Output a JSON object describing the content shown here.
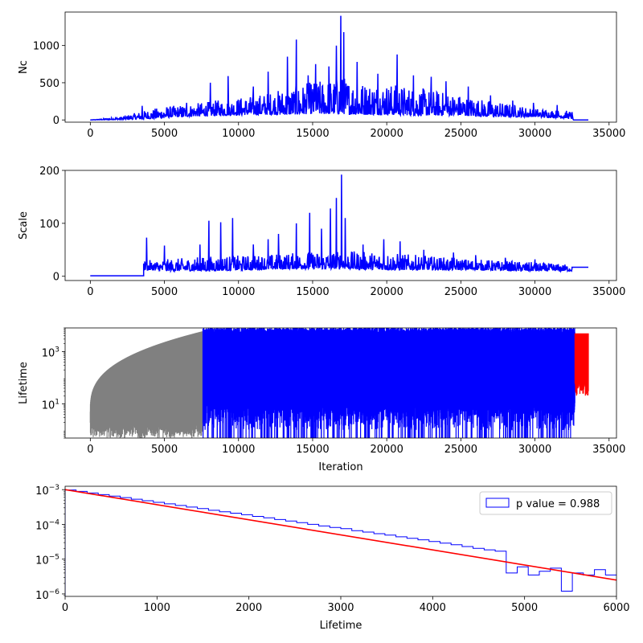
{
  "chart_data": [
    {
      "type": "line",
      "ylabel": "Nc",
      "xlabel": "",
      "xlim": [
        -1700,
        35500
      ],
      "ylim": [
        -30,
        1450
      ],
      "xticks": [
        0,
        5000,
        10000,
        15000,
        20000,
        25000,
        30000,
        35000
      ],
      "xtick_labels": [
        "0",
        "5000",
        "10000",
        "15000",
        "20000",
        "25000",
        "30000",
        "35000"
      ],
      "yticks": [
        0,
        500,
        1000
      ],
      "ytick_labels": [
        "0",
        "500",
        "1000"
      ],
      "colors": {
        "series": "#0000ff"
      },
      "series": [
        {
          "color": "#0000ff",
          "envelope_x": [
            0,
            2000,
            3500,
            5000,
            7000,
            9000,
            11000,
            13000,
            15000,
            16500,
            17000,
            18000,
            20000,
            22000,
            25000,
            27000,
            30000,
            32500,
            32600,
            33600
          ],
          "envelope_low": [
            0,
            5,
            10,
            30,
            50,
            60,
            70,
            70,
            80,
            80,
            80,
            70,
            70,
            60,
            60,
            40,
            40,
            20,
            0,
            0
          ],
          "envelope_high": [
            0,
            40,
            120,
            180,
            220,
            280,
            330,
            420,
            520,
            560,
            600,
            520,
            500,
            440,
            340,
            260,
            160,
            120,
            0,
            0
          ],
          "spikes": [
            {
              "x": 3500,
              "y": 190
            },
            {
              "x": 6500,
              "y": 230
            },
            {
              "x": 8100,
              "y": 500
            },
            {
              "x": 9300,
              "y": 590
            },
            {
              "x": 11000,
              "y": 450
            },
            {
              "x": 12000,
              "y": 650
            },
            {
              "x": 13300,
              "y": 850
            },
            {
              "x": 13900,
              "y": 1080
            },
            {
              "x": 14700,
              "y": 600
            },
            {
              "x": 15200,
              "y": 750
            },
            {
              "x": 16100,
              "y": 720
            },
            {
              "x": 16600,
              "y": 1000
            },
            {
              "x": 16900,
              "y": 1400
            },
            {
              "x": 17100,
              "y": 1180
            },
            {
              "x": 18000,
              "y": 780
            },
            {
              "x": 19400,
              "y": 620
            },
            {
              "x": 20700,
              "y": 880
            },
            {
              "x": 21800,
              "y": 600
            },
            {
              "x": 23000,
              "y": 580
            },
            {
              "x": 24000,
              "y": 520
            },
            {
              "x": 25500,
              "y": 450
            },
            {
              "x": 27000,
              "y": 330
            },
            {
              "x": 28500,
              "y": 260
            },
            {
              "x": 29900,
              "y": 230
            },
            {
              "x": 31500,
              "y": 200
            }
          ]
        }
      ]
    },
    {
      "type": "line",
      "ylabel": "Scale",
      "xlabel": "",
      "xlim": [
        -1700,
        35500
      ],
      "ylim": [
        -8,
        200
      ],
      "xticks": [
        0,
        5000,
        10000,
        15000,
        20000,
        25000,
        30000,
        35000
      ],
      "xtick_labels": [
        "0",
        "5000",
        "10000",
        "15000",
        "20000",
        "25000",
        "30000",
        "35000"
      ],
      "yticks": [
        0,
        100,
        200
      ],
      "ytick_labels": [
        "0",
        "100",
        "200"
      ],
      "colors": {
        "series": "#0000ff"
      },
      "series": [
        {
          "color": "#0000ff",
          "flat_start": {
            "x": [
              0,
              3600
            ],
            "y": 1
          },
          "envelope_x": [
            3600,
            5000,
            8000,
            11000,
            14000,
            17000,
            20000,
            23000,
            26000,
            29000,
            32500
          ],
          "envelope_low": [
            12,
            10,
            10,
            12,
            14,
            14,
            12,
            12,
            12,
            10,
            10
          ],
          "envelope_high": [
            30,
            32,
            38,
            40,
            45,
            48,
            45,
            38,
            32,
            28,
            22
          ],
          "flat_end": {
            "x": [
              32500,
              33600
            ],
            "y": 17
          },
          "spikes": [
            {
              "x": 3800,
              "y": 73
            },
            {
              "x": 5000,
              "y": 58
            },
            {
              "x": 7400,
              "y": 60
            },
            {
              "x": 8000,
              "y": 105
            },
            {
              "x": 8800,
              "y": 102
            },
            {
              "x": 9600,
              "y": 110
            },
            {
              "x": 11000,
              "y": 60
            },
            {
              "x": 12000,
              "y": 70
            },
            {
              "x": 12700,
              "y": 80
            },
            {
              "x": 13900,
              "y": 100
            },
            {
              "x": 14800,
              "y": 120
            },
            {
              "x": 15600,
              "y": 90
            },
            {
              "x": 16200,
              "y": 128
            },
            {
              "x": 16600,
              "y": 148
            },
            {
              "x": 16950,
              "y": 192
            },
            {
              "x": 17200,
              "y": 110
            },
            {
              "x": 18400,
              "y": 60
            },
            {
              "x": 19800,
              "y": 70
            },
            {
              "x": 20900,
              "y": 66
            },
            {
              "x": 22500,
              "y": 50
            },
            {
              "x": 24500,
              "y": 45
            },
            {
              "x": 26000,
              "y": 40
            },
            {
              "x": 28000,
              "y": 35
            },
            {
              "x": 30000,
              "y": 32
            }
          ]
        }
      ]
    },
    {
      "type": "line",
      "ylabel": "Lifetime",
      "xlabel": "Iteration",
      "yscale": "log",
      "xlim": [
        -1700,
        35500
      ],
      "ylim": [
        0.5,
        8000
      ],
      "xticks": [
        0,
        5000,
        10000,
        15000,
        20000,
        25000,
        30000,
        35000
      ],
      "xtick_labels": [
        "0",
        "5000",
        "10000",
        "15000",
        "20000",
        "25000",
        "30000",
        "35000"
      ],
      "yticks": [
        10,
        1000
      ],
      "ytick_labels": [
        "10^1",
        "10^3"
      ],
      "colors": {
        "burn_in": "#808080",
        "main": "#0000ff",
        "tail": "#ff0000"
      },
      "series": [
        {
          "color": "#808080",
          "x_range": [
            0,
            7600
          ],
          "low": 0.5,
          "high_start": 1,
          "high_end": 6000
        },
        {
          "color": "#0000ff",
          "x_range": [
            7600,
            32700
          ],
          "low": 1,
          "high": 6500
        },
        {
          "color": "#ff0000",
          "x_range": [
            32700,
            33600
          ],
          "low": 20,
          "high": 5000
        }
      ]
    },
    {
      "type": "line",
      "xlabel": "Lifetime",
      "ylabel": "",
      "yscale": "log",
      "xlim": [
        0,
        6000
      ],
      "ylim": [
        8.5e-07,
        0.00125
      ],
      "xticks": [
        0,
        1000,
        2000,
        3000,
        4000,
        5000,
        6000
      ],
      "xtick_labels": [
        "0",
        "1000",
        "2000",
        "3000",
        "4000",
        "5000",
        "6000"
      ],
      "yticks": [
        0.001,
        0.0001,
        1e-05,
        1e-06
      ],
      "ytick_labels": [
        "10^-3",
        "10^-4",
        "10^-5",
        "10^-6"
      ],
      "colors": {
        "histogram": "#0000ff",
        "fit": "#ff0000"
      },
      "legend": {
        "label": "p value = 0.988",
        "loc": "upper-right"
      },
      "histogram": {
        "bin_width": 120,
        "values": [
          0.00098,
          0.00089,
          0.0008,
          0.00072,
          0.00065,
          0.00059,
          0.00053,
          0.00048,
          0.00043,
          0.00039,
          0.00035,
          0.000315,
          0.000285,
          0.000255,
          0.00023,
          0.00021,
          0.00019,
          0.00017,
          0.000155,
          0.000138,
          0.000125,
          0.000112,
          0.0001,
          9e-05,
          8.2e-05,
          7.5e-05,
          6.6e-05,
          6e-05,
          5.4e-05,
          4.9e-05,
          4.4e-05,
          4e-05,
          3.6e-05,
          3.2e-05,
          2.9e-05,
          2.6e-05,
          2.3e-05,
          2.05e-05,
          1.85e-05,
          1.7e-05,
          4e-06,
          6e-06,
          3.5e-06,
          4.5e-06,
          5.5e-06,
          1.2e-06,
          4e-06,
          3.5e-06,
          5e-06,
          3.5e-06
        ]
      },
      "fit": {
        "x": [
          0,
          6000
        ],
        "y": [
          0.001,
          2.5e-06
        ]
      }
    }
  ]
}
